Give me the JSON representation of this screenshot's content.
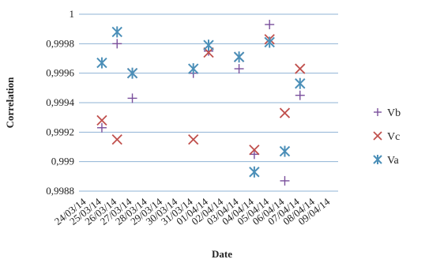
{
  "chart_data": {
    "type": "scatter",
    "xlabel": "Date",
    "ylabel": "Correlation",
    "ylim": [
      0.9988,
      1.0
    ],
    "yticks": [
      "0,9988",
      "0,999",
      "0,9992",
      "0,9994",
      "0,9996",
      "0,9998",
      "1"
    ],
    "grid": "horizontal",
    "legend_position": "right",
    "categories": [
      "24/03/14",
      "25/03/14",
      "26/03/14",
      "27/03/14",
      "28/03/14",
      "29/03/14",
      "30/03/14",
      "31/03/14",
      "01/04/14",
      "02/04/14",
      "03/04/14",
      "04/04/14",
      "05/04/14",
      "06/04/14",
      "07/04/14",
      "08/04/14",
      "09/04/14"
    ],
    "series": [
      {
        "name": "Vb",
        "marker": "plus",
        "color": "#7a4f9c",
        "points": [
          [
            1,
            0.99923
          ],
          [
            2,
            0.9998
          ],
          [
            3,
            0.99943
          ],
          [
            7,
            0.9996
          ],
          [
            8,
            0.99975
          ],
          [
            10,
            0.99963
          ],
          [
            11,
            0.99905
          ],
          [
            12,
            0.99993
          ],
          [
            13,
            0.99887
          ],
          [
            14,
            0.99945
          ]
        ]
      },
      {
        "name": "Vc",
        "marker": "x",
        "color": "#c0504d",
        "points": [
          [
            1,
            0.99928
          ],
          [
            2,
            0.99915
          ],
          [
            3,
            0.9996
          ],
          [
            7,
            0.99915
          ],
          [
            8,
            0.99974
          ],
          [
            10,
            0.99971
          ],
          [
            11,
            0.99908
          ],
          [
            12,
            0.99983
          ],
          [
            13,
            0.99933
          ],
          [
            14,
            0.99963
          ]
        ]
      },
      {
        "name": "Va",
        "marker": "asterisk",
        "color": "#4b8fb8",
        "points": [
          [
            1,
            0.99967
          ],
          [
            2,
            0.99988
          ],
          [
            3,
            0.9996
          ],
          [
            7,
            0.99963
          ],
          [
            8,
            0.99979
          ],
          [
            10,
            0.99971
          ],
          [
            11,
            0.99893
          ],
          [
            12,
            0.99981
          ],
          [
            13,
            0.99907
          ],
          [
            14,
            0.99953
          ]
        ]
      }
    ]
  }
}
